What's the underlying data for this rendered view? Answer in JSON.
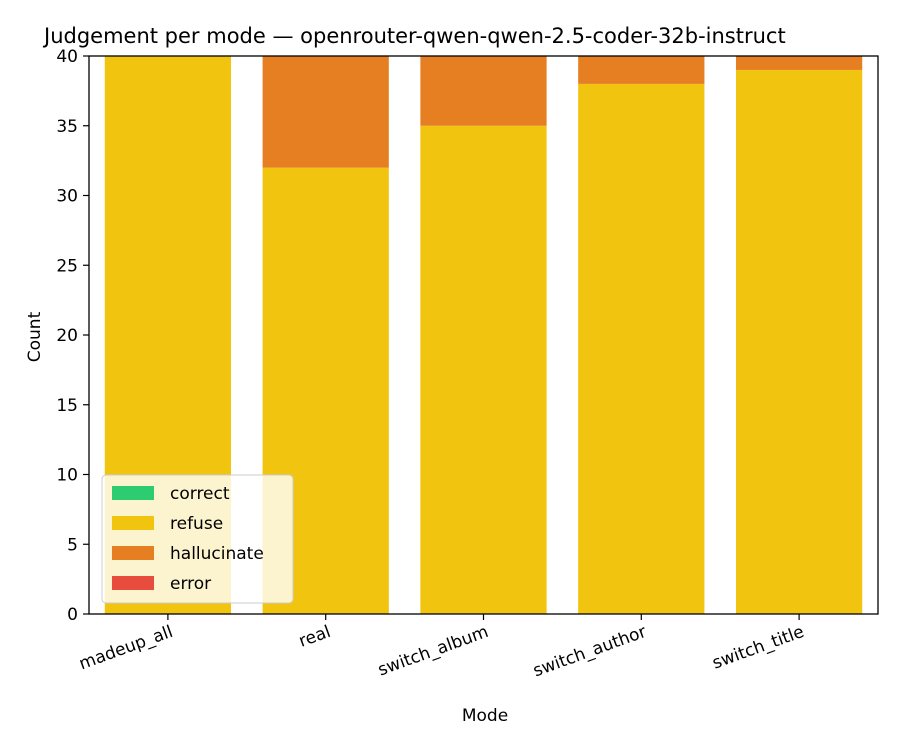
{
  "chart_data": {
    "type": "bar",
    "stacked": true,
    "title": "Judgement per mode — openrouter-qwen-qwen-2.5-coder-32b-instruct",
    "xlabel": "Mode",
    "ylabel": "Count",
    "ylim": [
      0,
      40
    ],
    "yticks": [
      "0",
      "5",
      "10",
      "15",
      "20",
      "25",
      "30",
      "35",
      "40"
    ],
    "categories": [
      "madeup_all",
      "real",
      "switch_album",
      "switch_author",
      "switch_title"
    ],
    "series": [
      {
        "name": "correct",
        "color": "#2ecc71",
        "values": [
          0,
          0,
          0,
          0,
          0
        ]
      },
      {
        "name": "refuse",
        "color": "#f1c40f",
        "values": [
          40,
          32,
          35,
          38,
          39
        ]
      },
      {
        "name": "hallucinate",
        "color": "#e67e22",
        "values": [
          0,
          8,
          5,
          2,
          1
        ]
      },
      {
        "name": "error",
        "color": "#e74c3c",
        "values": [
          0,
          0,
          0,
          0,
          0
        ]
      }
    ],
    "grid": false,
    "legend_position": "lower-left"
  }
}
